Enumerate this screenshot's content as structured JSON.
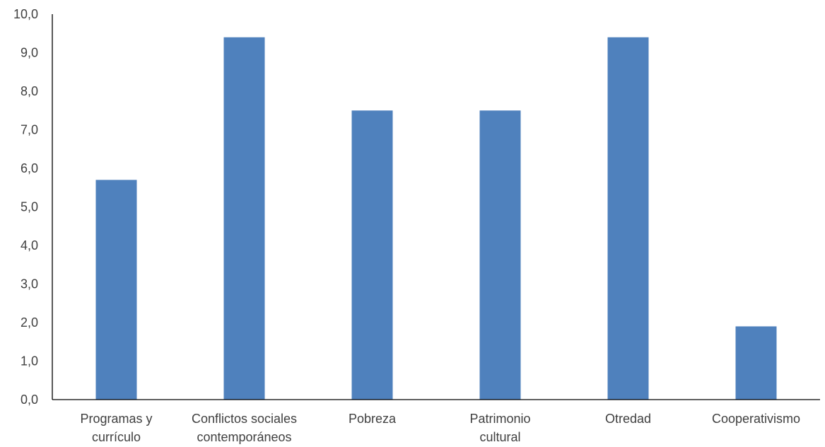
{
  "chart_data": {
    "type": "bar",
    "title": "",
    "xlabel": "",
    "ylabel": "",
    "categories": [
      [
        "Programas y",
        "currículo"
      ],
      [
        "Conflictos sociales",
        "contemporáneos"
      ],
      [
        "Pobreza"
      ],
      [
        "Patrimonio",
        "cultural"
      ],
      [
        "Otredad"
      ],
      [
        "Cooperativismo"
      ]
    ],
    "values": [
      5.7,
      9.4,
      7.5,
      7.5,
      9.4,
      1.9
    ],
    "ylim": [
      0,
      10
    ],
    "yticks": [
      "0,0",
      "1,0",
      "2,0",
      "3,0",
      "4,0",
      "5,0",
      "6,0",
      "7,0",
      "8,0",
      "9,0",
      "10,0"
    ],
    "grid": false,
    "legend": "none",
    "bar_color": "#4f81bd"
  }
}
